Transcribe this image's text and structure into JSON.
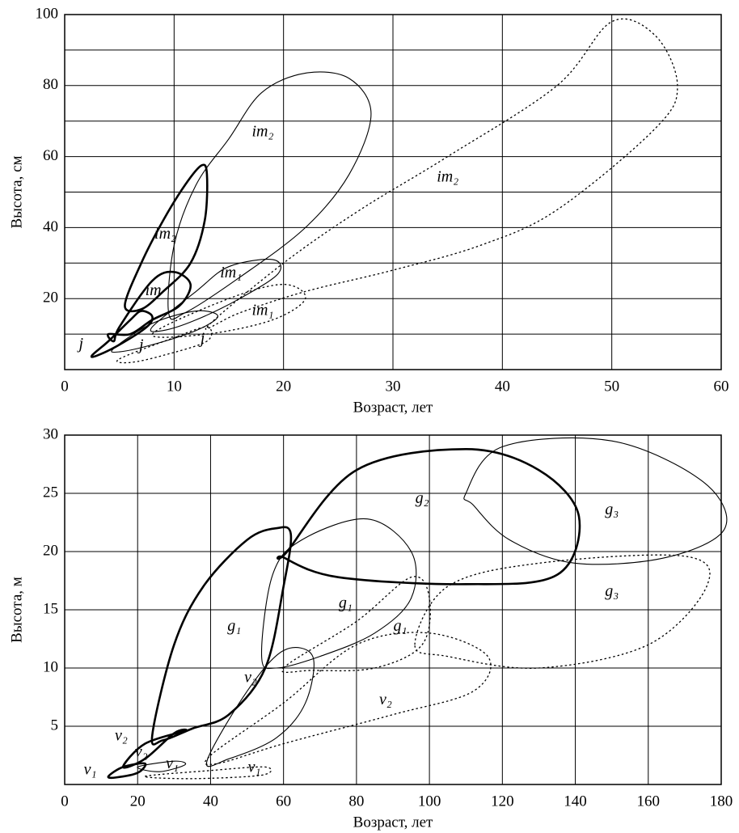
{
  "charts": [
    {
      "type": "contour",
      "xlabel": "Возраст, лет",
      "ylabel": "Высота, см",
      "xlim": [
        0,
        60
      ],
      "ylim": [
        0,
        100
      ],
      "xticks": [
        0,
        10,
        20,
        30,
        40,
        50,
        60
      ],
      "yticks": [
        20,
        40,
        60,
        80,
        100
      ],
      "yminor": [
        10,
        30,
        50,
        70,
        90
      ],
      "grid": true,
      "regions": [
        {
          "style": "thick",
          "x": [
            5.5,
            7,
            9,
            11,
            12.5,
            13,
            12.8,
            11.5,
            9,
            7
          ],
          "y": [
            18,
            30,
            42,
            52,
            57.5,
            55,
            42,
            30,
            22,
            17
          ]
        },
        {
          "style": "thick",
          "x": [
            4.5,
            5,
            8,
            10,
            11.5,
            10.5,
            8,
            6,
            4
          ],
          "y": [
            8,
            12,
            25,
            27.5,
            24,
            18,
            14,
            10,
            10
          ]
        },
        {
          "style": "thick",
          "x": [
            2.5,
            4,
            6,
            7,
            8,
            7.5,
            5,
            3
          ],
          "y": [
            4,
            8,
            14,
            16.5,
            15,
            12,
            7,
            4
          ]
        },
        {
          "style": "thin",
          "x": [
            9.5,
            10,
            12,
            15,
            18,
            22,
            26,
            28,
            26,
            22,
            16,
            11
          ],
          "y": [
            16,
            35,
            52,
            65,
            78,
            83.5,
            82,
            72,
            55,
            40,
            26,
            16
          ]
        },
        {
          "style": "thin",
          "x": [
            8,
            12,
            15,
            19,
            19.5,
            16,
            12,
            9
          ],
          "y": [
            12,
            22,
            29,
            31,
            27,
            20,
            14,
            11
          ]
        },
        {
          "style": "thin",
          "x": [
            4.5,
            8,
            12,
            14,
            12,
            8,
            5
          ],
          "y": [
            6,
            13,
            16.5,
            15,
            11,
            7,
            5
          ]
        },
        {
          "style": "dotted",
          "x": [
            13,
            20,
            27,
            35,
            45,
            50,
            54,
            56,
            54,
            45,
            38,
            30,
            22,
            16
          ],
          "y": [
            12,
            30,
            45,
            60,
            80,
            98,
            94,
            80,
            68,
            45,
            35,
            28,
            22,
            16
          ]
        },
        {
          "style": "dotted",
          "x": [
            8,
            15,
            20,
            22,
            19,
            13
          ],
          "y": [
            10,
            20,
            24,
            20,
            14,
            10
          ]
        },
        {
          "style": "dotted",
          "x": [
            5,
            10,
            13,
            13,
            9,
            6
          ],
          "y": [
            3,
            9,
            12,
            8,
            4,
            2
          ]
        }
      ],
      "annotations": [
        {
          "text": "im₂",
          "x": 18.1,
          "y": 66.8
        },
        {
          "text": "im₂",
          "x": 35,
          "y": 54
        },
        {
          "text": "im₂",
          "x": 9.2,
          "y": 38
        },
        {
          "text": "im₁",
          "x": 15.2,
          "y": 27
        },
        {
          "text": "im₁",
          "x": 18.1,
          "y": 16.4
        },
        {
          "text": "im",
          "x": 8.1,
          "y": 22
        },
        {
          "text": "j",
          "x": 1.5,
          "y": 7
        },
        {
          "text": "j",
          "x": 7,
          "y": 6.6
        },
        {
          "text": "j",
          "x": 12.6,
          "y": 8.4
        }
      ]
    },
    {
      "type": "contour",
      "xlabel": "Возраст, лет",
      "ylabel": "Высота, м",
      "xlim": [
        0,
        180
      ],
      "ylim": [
        0,
        30
      ],
      "xticks": [
        0,
        20,
        40,
        60,
        80,
        100,
        120,
        140,
        160,
        180
      ],
      "yticks": [
        5,
        10,
        15,
        20,
        25,
        30
      ],
      "grid": true,
      "regions": [
        {
          "style": "thick",
          "x": [
            12,
            16,
            22,
            20,
            14
          ],
          "y": [
            0.7,
            1.5,
            1.8,
            1.0,
            0.6
          ]
        },
        {
          "style": "thick",
          "x": [
            16,
            22,
            33,
            30,
            22
          ],
          "y": [
            1.5,
            3.5,
            4.6,
            4.4,
            2.2
          ]
        },
        {
          "style": "thick",
          "x": [
            24,
            30,
            38,
            50,
            58,
            62,
            60,
            55,
            45,
            35,
            27
          ],
          "y": [
            4.2,
            12,
            17,
            21,
            22,
            21.5,
            17,
            10,
            6,
            4.8,
            3.8
          ]
        },
        {
          "style": "thick",
          "x": [
            61,
            80,
            110,
            130,
            141,
            135,
            110,
            75,
            60
          ],
          "y": [
            20,
            27,
            28.8,
            27,
            23,
            18,
            17.2,
            17.8,
            19.5
          ]
        },
        {
          "style": "thin",
          "x": [
            110,
            120,
            150,
            175,
            181,
            165,
            140,
            122,
            112
          ],
          "y": [
            25,
            29,
            29.5,
            26,
            22,
            19.5,
            19,
            21,
            24
          ]
        },
        {
          "style": "thin",
          "x": [
            54,
            57,
            65,
            83,
            95,
            95,
            85,
            70,
            58
          ],
          "y": [
            11,
            18,
            21,
            22.8,
            20,
            16,
            13,
            11,
            10
          ]
        },
        {
          "style": "thin",
          "x": [
            39,
            50,
            60,
            68,
            66,
            58,
            45
          ],
          "y": [
            2,
            8,
            11.5,
            11,
            7,
            4,
            2.2
          ]
        },
        {
          "style": "thin",
          "x": [
            20,
            30,
            33,
            26
          ],
          "y": [
            1.5,
            2,
            1.7,
            1.1
          ]
        },
        {
          "style": "dotted",
          "x": [
            96,
            105,
            130,
            170,
            176,
            160,
            130,
            105
          ],
          "y": [
            12,
            17,
            19,
            19.6,
            17,
            12,
            10,
            11
          ]
        },
        {
          "style": "dotted",
          "x": [
            60,
            80,
            95,
            100,
            98,
            85,
            68
          ],
          "y": [
            10,
            14,
            17.8,
            16,
            12,
            10,
            9.8
          ]
        },
        {
          "style": "dotted",
          "x": [
            40,
            60,
            80,
            100,
            116,
            112,
            90,
            60,
            42
          ],
          "y": [
            2.5,
            7,
            12,
            13,
            11,
            8,
            6,
            3.5,
            1.8
          ]
        },
        {
          "style": "dotted",
          "x": [
            22,
            40,
            55,
            54,
            35
          ],
          "y": [
            0.7,
            1.2,
            1.5,
            0.8,
            0.5
          ]
        }
      ],
      "annotations": [
        {
          "text": "g₂",
          "x": 98,
          "y": 24.5
        },
        {
          "text": "g₃",
          "x": 150,
          "y": 23.5
        },
        {
          "text": "g₃",
          "x": 150,
          "y": 16.5
        },
        {
          "text": "g₁",
          "x": 77,
          "y": 15.5
        },
        {
          "text": "g₁",
          "x": 46.5,
          "y": 13.5
        },
        {
          "text": "g₁",
          "x": 92,
          "y": 13.5
        },
        {
          "text": "v₂",
          "x": 51,
          "y": 9.1
        },
        {
          "text": "v₂",
          "x": 88,
          "y": 7.2
        },
        {
          "text": "v₂",
          "x": 15.5,
          "y": 4.1
        },
        {
          "text": "v₂",
          "x": 21,
          "y": 2.7
        },
        {
          "text": "v₁",
          "x": 7,
          "y": 1.2
        },
        {
          "text": "v₁",
          "x": 29.5,
          "y": 1.7
        },
        {
          "text": "v₁",
          "x": 52,
          "y": 1.4
        }
      ]
    }
  ]
}
